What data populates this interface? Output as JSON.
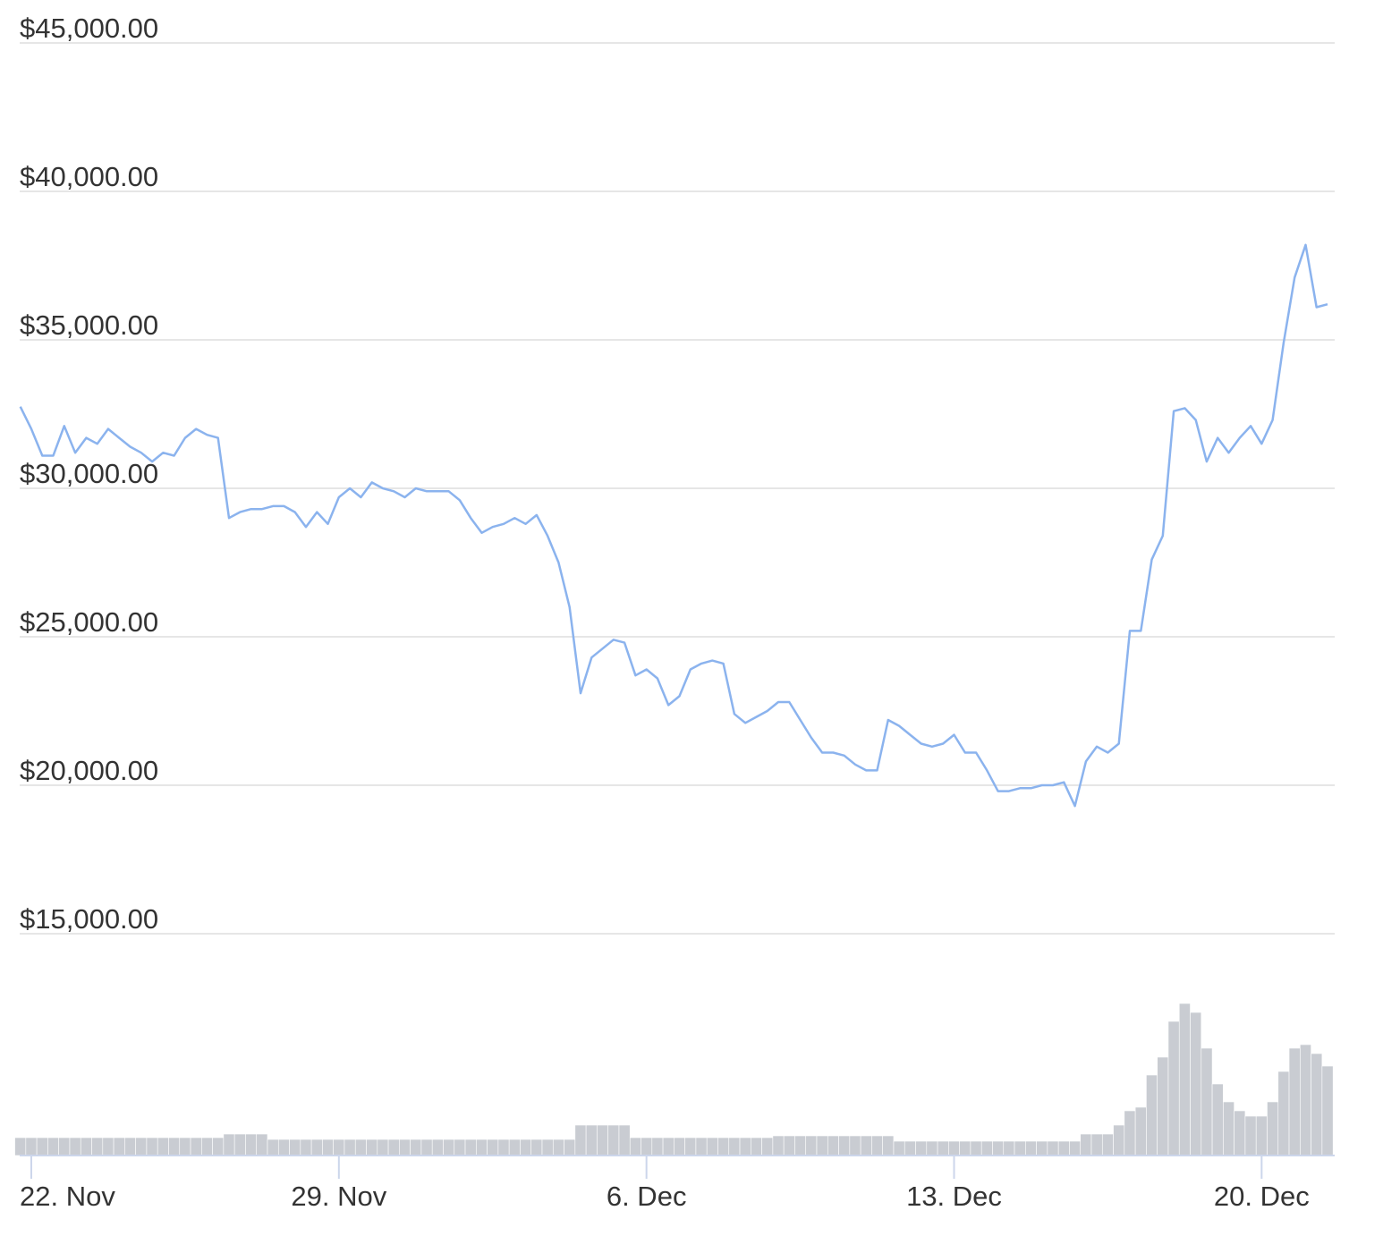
{
  "chart_data": {
    "type": "line",
    "categories": [
      null,
      "22. Nov",
      null,
      null,
      null,
      null,
      null,
      null,
      null,
      null,
      null,
      null,
      null,
      null,
      null,
      null,
      null,
      null,
      null,
      null,
      null,
      null,
      null,
      null,
      null,
      null,
      null,
      null,
      null,
      "29. Nov",
      null,
      null,
      null,
      null,
      null,
      null,
      null,
      null,
      null,
      null,
      null,
      null,
      null,
      null,
      null,
      null,
      null,
      null,
      null,
      null,
      null,
      null,
      null,
      null,
      null,
      null,
      null,
      "6. Dec",
      null,
      null,
      null,
      null,
      null,
      null,
      null,
      null,
      null,
      null,
      null,
      null,
      null,
      null,
      null,
      null,
      null,
      null,
      null,
      null,
      null,
      null,
      null,
      null,
      null,
      null,
      null,
      "13. Dec",
      null,
      null,
      null,
      null,
      null,
      null,
      null,
      null,
      null,
      null,
      null,
      null,
      null,
      null,
      null,
      null,
      null,
      null,
      null,
      null,
      null,
      null,
      null,
      null,
      null,
      null,
      null,
      "20. Dec",
      null,
      null,
      null,
      null,
      null,
      null
    ],
    "series": [
      {
        "color": "#8bb3ee",
        "values": [
          32750,
          32000,
          31100,
          31100,
          32100,
          31200,
          31700,
          31500,
          32000,
          31700,
          31400,
          31200,
          30900,
          31200,
          31100,
          31700,
          32000,
          31800,
          31700,
          29000,
          29200,
          29300,
          29300,
          29400,
          29400,
          29200,
          28700,
          29200,
          28800,
          29700,
          30000,
          29700,
          30200,
          30000,
          29900,
          29700,
          30000,
          29900,
          29900,
          29900,
          29600,
          29000,
          28500,
          28700,
          28800,
          29000,
          28800,
          29100,
          28400,
          27500,
          26000,
          23100,
          24300,
          24600,
          24900,
          24800,
          23700,
          23900,
          23600,
          22700,
          23000,
          23900,
          24100,
          24200,
          24100,
          22400,
          22100,
          22300,
          22500,
          22800,
          22800,
          22200,
          21600,
          21100,
          21100,
          21000,
          20700,
          20500,
          20500,
          22200,
          22000,
          21700,
          21400,
          21300,
          21400,
          21700,
          21100,
          21100,
          20500,
          19800,
          19800,
          19900,
          19900,
          20000,
          20000,
          20100,
          19300,
          20800,
          21300,
          21100,
          21400,
          25200,
          25200,
          27600,
          28400,
          32600,
          32700,
          32300,
          30900,
          31700,
          31200,
          31700,
          32100,
          31500,
          32300,
          34900,
          37100,
          38200,
          36100,
          36200
        ]
      },
      {
        "color": "#c9ccd2",
        "axis": "y2",
        "values": [
          10,
          10,
          10,
          10,
          10,
          10,
          10,
          10,
          10,
          10,
          10,
          10,
          10,
          10,
          10,
          10,
          10,
          10,
          10,
          12,
          12,
          12,
          12,
          9,
          9,
          9,
          9,
          9,
          9,
          9,
          9,
          9,
          9,
          9,
          9,
          9,
          9,
          9,
          9,
          9,
          9,
          9,
          9,
          9,
          9,
          9,
          9,
          9,
          9,
          9,
          9,
          17,
          17,
          17,
          17,
          17,
          10,
          10,
          10,
          10,
          10,
          10,
          10,
          10,
          10,
          10,
          10,
          10,
          10,
          11,
          11,
          11,
          11,
          11,
          11,
          11,
          11,
          11,
          11,
          11,
          8,
          8,
          8,
          8,
          8,
          8,
          8,
          8,
          8,
          8,
          8,
          8,
          8,
          8,
          8,
          8,
          8,
          12,
          12,
          12,
          17,
          25,
          27,
          45,
          55,
          75,
          85,
          80,
          60,
          40,
          30,
          25,
          22,
          22,
          30,
          47,
          60,
          62,
          57,
          50
        ]
      }
    ],
    "ylim": [
      15000,
      45000
    ],
    "yticks": [
      {
        "value": 15000,
        "label": "$15,000.00"
      },
      {
        "value": 20000,
        "label": "$20,000.00"
      },
      {
        "value": 25000,
        "label": "$25,000.00"
      },
      {
        "value": 30000,
        "label": "$30,000.00"
      },
      {
        "value": 35000,
        "label": "$35,000.00"
      },
      {
        "value": 40000,
        "label": "$40,000.00"
      },
      {
        "value": 45000,
        "label": "$45,000.00"
      }
    ],
    "y2lim": [
      0,
      100
    ],
    "grid": true
  }
}
